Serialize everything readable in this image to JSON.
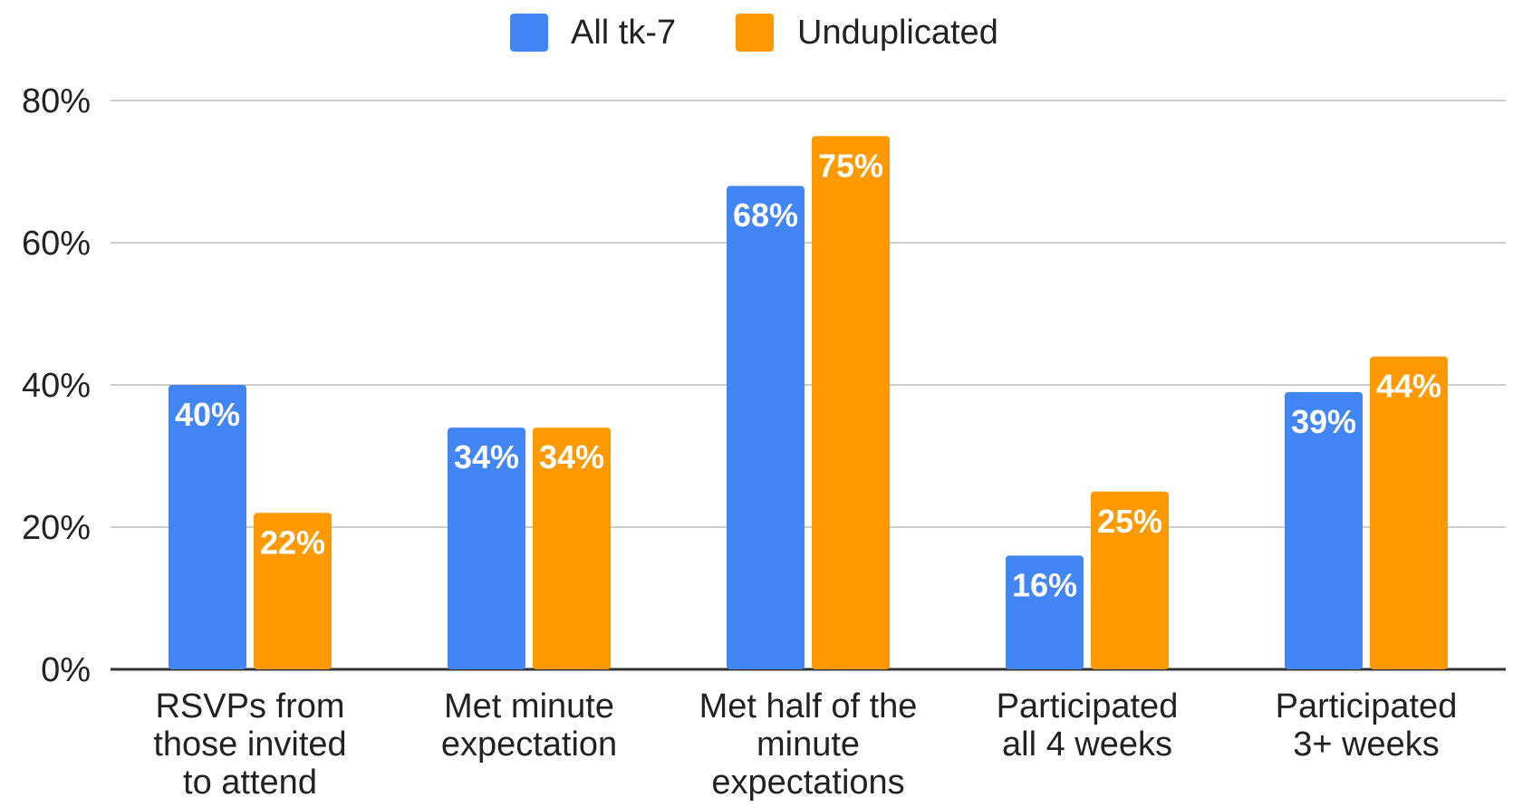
{
  "chart_data": {
    "type": "bar",
    "categories": [
      [
        "RSVPs from",
        "those invited",
        "to attend"
      ],
      [
        "Met minute",
        "expectation"
      ],
      [
        "Met half of the",
        "minute",
        "expectations"
      ],
      [
        "Participated",
        "all 4 weeks"
      ],
      [
        "Participated",
        "3+ weeks"
      ]
    ],
    "series": [
      {
        "name": "All tk-7",
        "color": "#4285f4",
        "values": [
          40,
          34,
          68,
          16,
          39
        ],
        "labels": [
          "40%",
          "34%",
          "68%",
          "16%",
          "39%"
        ]
      },
      {
        "name": "Unduplicated",
        "color": "#ff9900",
        "values": [
          22,
          34,
          75,
          25,
          44
        ],
        "labels": [
          "22%",
          "34%",
          "75%",
          "25%",
          "44%"
        ]
      }
    ],
    "ylim": [
      0,
      80
    ],
    "yticks": [
      0,
      20,
      40,
      60,
      80
    ],
    "ytick_labels": [
      "0%",
      "20%",
      "40%",
      "60%",
      "80%"
    ],
    "grid": true,
    "legend_position": "top-center",
    "title": "",
    "xlabel": "",
    "ylabel": ""
  }
}
